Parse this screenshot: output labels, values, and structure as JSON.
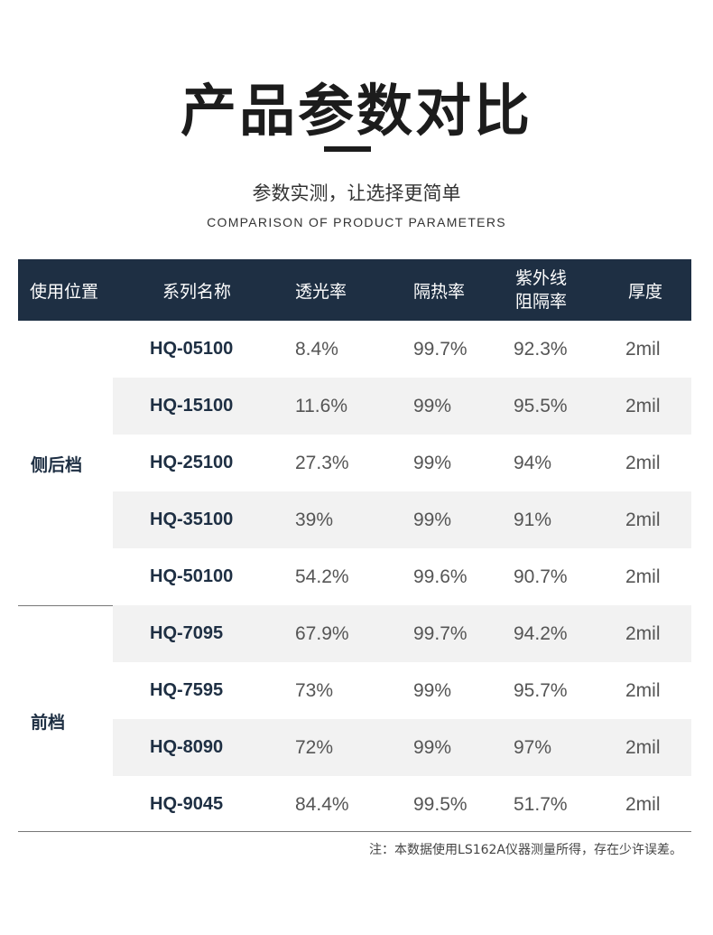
{
  "title": "产品参数对比",
  "subtitle": "参数实测，让选择更简单",
  "subtitle_en": "COMPARISON OF PRODUCT PARAMETERS",
  "table": {
    "headers": {
      "position": "使用位置",
      "series": "系列名称",
      "vlt": "透光率",
      "heat": "隔热率",
      "uv_line1": "紫外线",
      "uv_line2": "阻隔率",
      "thickness": "厚度"
    },
    "groups": [
      {
        "label": "侧后档",
        "rows": [
          {
            "model": "HQ-05100",
            "vlt": "8.4%",
            "heat": "99.7%",
            "uv": "92.3%",
            "thickness": "2mil"
          },
          {
            "model": "HQ-15100",
            "vlt": "11.6%",
            "heat": "99%",
            "uv": "95.5%",
            "thickness": "2mil"
          },
          {
            "model": "HQ-25100",
            "vlt": "27.3%",
            "heat": "99%",
            "uv": "94%",
            "thickness": "2mil"
          },
          {
            "model": "HQ-35100",
            "vlt": "39%",
            "heat": "99%",
            "uv": "91%",
            "thickness": "2mil"
          },
          {
            "model": "HQ-50100",
            "vlt": "54.2%",
            "heat": "99.6%",
            "uv": "90.7%",
            "thickness": "2mil"
          }
        ]
      },
      {
        "label": "前档",
        "rows": [
          {
            "model": "HQ-7095",
            "vlt": "67.9%",
            "heat": "99.7%",
            "uv": "94.2%",
            "thickness": "2mil"
          },
          {
            "model": "HQ-7595",
            "vlt": "73%",
            "heat": "99%",
            "uv": "95.7%",
            "thickness": "2mil"
          },
          {
            "model": "HQ-8090",
            "vlt": "72%",
            "heat": "99%",
            "uv": "97%",
            "thickness": "2mil"
          },
          {
            "model": "HQ-9045",
            "vlt": "84.4%",
            "heat": "99.5%",
            "uv": "51.7%",
            "thickness": "2mil"
          }
        ]
      }
    ]
  },
  "note": "注：本数据使用LS162A仪器测量所得，存在少许误差。",
  "colors": {
    "header_bg": "#1e2f43",
    "row_shade": "#f2f2f2",
    "model_text": "#1e2f43"
  }
}
